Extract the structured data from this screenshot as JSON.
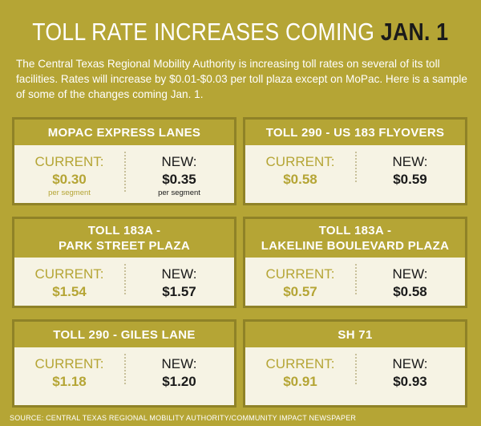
{
  "title": {
    "main": "TOLL RATE INCREASES COMING",
    "accent": "JAN. 1"
  },
  "intro": "The Central Texas Regional Mobility Authority is increasing toll rates on several of its toll facilities. Rates will increase by $0.01-$0.03 per toll plaza except on MoPac. Here is a sample of some of the changes coming Jan. 1.",
  "labels": {
    "current": "CURRENT:",
    "new": "NEW:"
  },
  "cards": [
    {
      "name": "MOPAC EXPRESS LANES",
      "current": "$0.30",
      "new": "$0.35",
      "current_unit": "per segment",
      "new_unit": "per segment"
    },
    {
      "name": "TOLL 290 - US 183 FLYOVERS",
      "current": "$0.58",
      "new": "$0.59"
    },
    {
      "name_line1": "TOLL 183A -",
      "name_line2": "PARK STREET PLAZA",
      "current": "$1.54",
      "new": "$1.57"
    },
    {
      "name_line1": "TOLL 183A -",
      "name_line2": "LAKELINE BOULEVARD PLAZA",
      "current": "$0.57",
      "new": "$0.58"
    },
    {
      "name": "TOLL 290 - GILES LANE",
      "current": "$1.18",
      "new": "$1.20"
    },
    {
      "name": "SH 71",
      "current": "$0.91",
      "new": "$0.93"
    }
  ],
  "source": "SOURCE: CENTRAL TEXAS REGIONAL MOBILITY AUTHORITY/COMMUNITY IMPACT NEWSPAPER",
  "colors": {
    "background": "#b5a535",
    "card": "#f6f3e4",
    "accent_text": "#1a1a1a"
  }
}
